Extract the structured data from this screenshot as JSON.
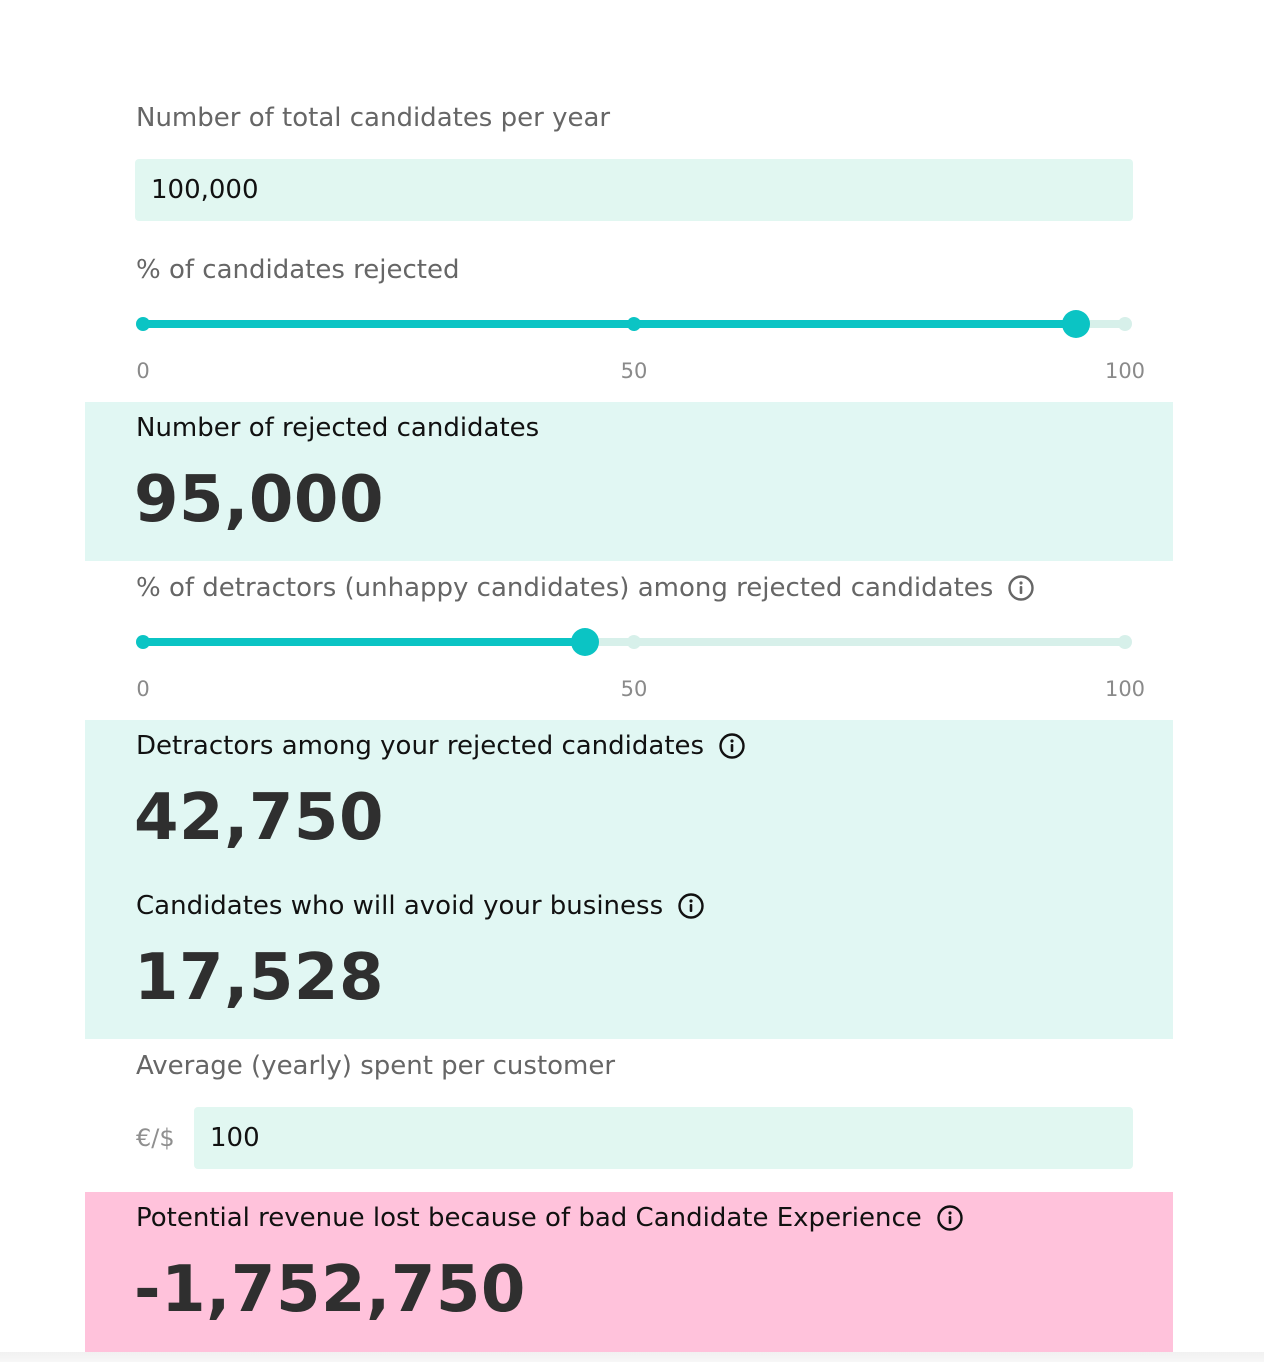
{
  "total_candidates": {
    "label": "Number of total candidates per year",
    "value": "100,000"
  },
  "rejected_pct": {
    "label": "% of candidates rejected",
    "value": 95,
    "min": 0,
    "max": 100,
    "ticks": [
      "0",
      "50",
      "100"
    ]
  },
  "rejected_count": {
    "label": "Number of rejected candidates",
    "value": "95,000"
  },
  "detractor_pct": {
    "label": "% of detractors (unhappy candidates) among rejected candidates",
    "value": 45,
    "min": 0,
    "max": 100,
    "ticks": [
      "0",
      "50",
      "100"
    ]
  },
  "detractors": {
    "label": "Detractors among your rejected candidates",
    "value": "42,750"
  },
  "avoiders": {
    "label": "Candidates who will avoid your business",
    "value": "17,528"
  },
  "avg_spend": {
    "label": "Average (yearly) spent per customer",
    "currency": "€/$",
    "value": "100"
  },
  "revenue_lost": {
    "label": "Potential revenue lost because of bad Candidate Experience",
    "value": "-1,752,750"
  },
  "colors": {
    "accent": "#0bc4c4",
    "input_bg": "#e1f7f1",
    "result_bg": "#e1f7f3",
    "loss_bg": "#ffc2db"
  }
}
